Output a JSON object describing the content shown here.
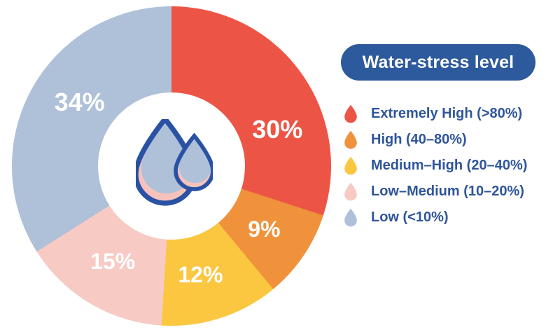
{
  "chart_data": {
    "type": "pie",
    "subtype": "donut",
    "title": "Water-stress level",
    "unit": "%",
    "start_angle_deg": 0,
    "direction": "clockwise",
    "legend_position": "right",
    "grid": false,
    "slices": [
      {
        "label": "Extremely High (>80%)",
        "value": 30,
        "display": "30%",
        "color": "#EC5545"
      },
      {
        "label": "High (40–80%)",
        "value": 9,
        "display": "9%",
        "color": "#F0923B"
      },
      {
        "label": "Medium–High (20–40%)",
        "value": 12,
        "display": "12%",
        "color": "#FBC640"
      },
      {
        "label": "Low–Medium (10–20%)",
        "value": 15,
        "display": "15%",
        "color": "#F7CAC4"
      },
      {
        "label": "Low (<10%)",
        "value": 34,
        "display": "34%",
        "color": "#AFC0D9"
      }
    ]
  },
  "legend": {
    "title": "Water-stress level"
  },
  "center_icon": {
    "name": "water-drops-icon",
    "outline_color": "#2A52A4",
    "fill_blue": "#AFC0D9",
    "fill_pink": "#F6C3BC"
  },
  "styles": {
    "background": "#FFFFFF",
    "title_pill_bg": "#2D5A9C",
    "title_text_color": "#FFFFFF",
    "legend_text_color": "#2F559B",
    "slice_label_color": "#FFFFFF"
  }
}
